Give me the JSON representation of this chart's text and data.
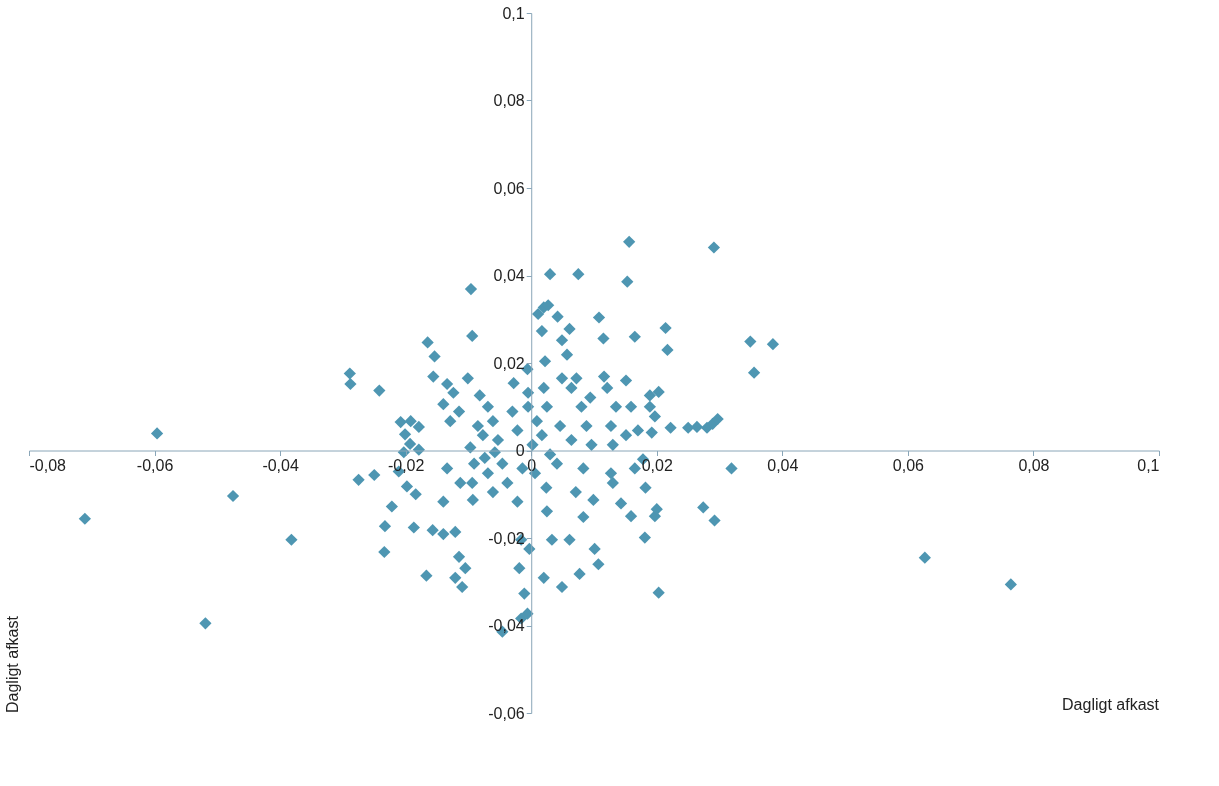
{
  "chart_data": {
    "type": "scatter",
    "xlabel": "Dagligt afkast",
    "ylabel": "Dagligt afkast",
    "xlim": [
      -0.08,
      0.1
    ],
    "ylim": [
      -0.06,
      0.1
    ],
    "xticks": [
      {
        "value": -0.08,
        "label": "-0,08"
      },
      {
        "value": -0.06,
        "label": "-0,06"
      },
      {
        "value": -0.04,
        "label": "-0,04"
      },
      {
        "value": -0.02,
        "label": "-0,02"
      },
      0,
      {
        "value": 0.02,
        "label": "0,02"
      },
      {
        "value": 0.04,
        "label": "0,04"
      },
      {
        "value": 0.06,
        "label": "0,06"
      },
      {
        "value": 0.08,
        "label": "0,08"
      },
      {
        "value": 0.1,
        "label": "0,1"
      }
    ],
    "yticks": [
      {
        "value": -0.06,
        "label": "-0,06"
      },
      {
        "value": -0.04,
        "label": "-0,04"
      },
      {
        "value": -0.02,
        "label": "-0,02"
      },
      0,
      {
        "value": 0.02,
        "label": "0,02"
      },
      {
        "value": 0.04,
        "label": "0,04"
      },
      {
        "value": 0.06,
        "label": "0,06"
      },
      {
        "value": 0.08,
        "label": "0,08"
      },
      {
        "value": 0.1,
        "label": "0,1"
      }
    ],
    "grid": false,
    "marker": "diamond",
    "series": [
      {
        "color": "#4e96b2",
        "x": [
          -0.0711,
          -0.0596,
          -0.0475,
          -0.0519,
          -0.0382,
          -0.0289,
          -0.0288,
          -0.0242,
          -0.0275,
          -0.025,
          -0.0233,
          -0.0222,
          -0.0234,
          -0.0203,
          -0.0208,
          -0.0192,
          -0.0179,
          -0.0201,
          -0.0193,
          -0.0179,
          -0.0211,
          -0.0198,
          -0.0184,
          -0.0187,
          -0.0165,
          -0.0154,
          -0.0156,
          -0.0167,
          -0.0157,
          -0.014,
          -0.014,
          -0.0134,
          -0.014,
          -0.0124,
          -0.0115,
          -0.0129,
          -0.0134,
          -0.0113,
          -0.0121,
          -0.0115,
          -0.0121,
          -0.011,
          -0.0105,
          -0.0094,
          -0.0096,
          -0.0101,
          -0.0097,
          -0.0091,
          -0.0094,
          -0.0093,
          -0.0085,
          -0.0077,
          -0.0074,
          -0.0069,
          -0.0061,
          -0.0082,
          -0.0069,
          -0.0061,
          -0.0053,
          -0.0058,
          -0.0046,
          -0.0038,
          -0.003,
          -0.0028,
          -0.0022,
          -0.0022,
          -0.0014,
          -0.0016,
          -0.0019,
          -0.0011,
          -0.0016,
          -0.0006,
          -0.0046,
          -0.0006,
          -0.0005,
          -0.0005,
          0.0002,
          0.0009,
          0.0006,
          -0.0003,
          0.0011,
          0.002,
          0.0027,
          0.0017,
          0.0022,
          0.002,
          0.0025,
          0.0017,
          0.003,
          0.0024,
          0.0025,
          0.002,
          0.003,
          0.0042,
          0.0049,
          0.0049,
          0.0046,
          0.0041,
          0.0033,
          0.0049,
          0.0057,
          0.0061,
          0.0064,
          0.0061,
          0.0064,
          0.0072,
          0.0075,
          0.008,
          0.0071,
          0.0077,
          0.0083,
          0.0088,
          0.0083,
          0.0094,
          0.0096,
          0.0099,
          0.0101,
          0.0107,
          0.0108,
          0.0115,
          0.0116,
          0.0121,
          0.0127,
          0.013,
          0.0127,
          0.013,
          0.0135,
          0.0143,
          0.0153,
          0.0156,
          0.0151,
          0.0151,
          0.0159,
          0.0159,
          0.0165,
          0.0165,
          0.017,
          0.0178,
          0.0181,
          0.0182,
          0.0189,
          0.0189,
          0.0192,
          0.0197,
          0.0197,
          0.0203,
          0.02,
          0.0203,
          0.0214,
          0.0217,
          0.0222,
          0.025,
          0.0264,
          0.028,
          0.0289,
          0.0297,
          0.0274,
          0.0292,
          0.0319,
          0.0291,
          0.0349,
          0.0385,
          0.0355,
          0.0627,
          0.0764
        ],
        "values": [
          -0.0156,
          0.0039,
          -0.0104,
          -0.0395,
          -0.0204,
          0.0176,
          0.0152,
          0.0137,
          -0.0067,
          -0.0056,
          -0.0173,
          -0.0128,
          -0.0232,
          -0.0004,
          0.0065,
          0.0067,
          0.0054,
          0.0037,
          0.0015,
          0.0002,
          -0.0048,
          -0.0082,
          -0.01,
          -0.0176,
          0.0247,
          0.0215,
          0.0169,
          -0.0286,
          -0.0182,
          -0.0191,
          -0.0117,
          0.0152,
          0.0106,
          0.0132,
          0.0089,
          0.0067,
          -0.0041,
          -0.0074,
          -0.0186,
          -0.0243,
          -0.0291,
          -0.0312,
          -0.0269,
          0.0262,
          0.0369,
          0.0165,
          0.0007,
          -0.003,
          -0.0074,
          -0.0113,
          0.0056,
          0.0035,
          -0.0017,
          -0.0052,
          -0.0095,
          0.0126,
          0.01,
          0.0067,
          0.0024,
          -0.0004,
          -0.003,
          -0.0074,
          0.0089,
          0.0154,
          0.0046,
          -0.0117,
          -0.0041,
          -0.0204,
          -0.0269,
          -0.0327,
          -0.0384,
          -0.0373,
          -0.0414,
          0.0186,
          0.0132,
          0.01,
          0.0013,
          0.0067,
          -0.0052,
          -0.0225,
          0.0312,
          0.0327,
          0.0332,
          0.0273,
          0.0204,
          0.0143,
          0.01,
          0.0035,
          -0.0009,
          -0.0085,
          -0.0139,
          -0.0291,
          0.0403,
          0.0306,
          0.0252,
          0.0165,
          0.0056,
          -0.003,
          -0.0204,
          -0.0312,
          0.0219,
          0.0278,
          0.0143,
          -0.0204,
          0.0024,
          0.0165,
          0.0403,
          0.01,
          -0.0095,
          -0.0282,
          -0.0152,
          0.0056,
          -0.0041,
          0.0121,
          0.0013,
          -0.0113,
          -0.0225,
          -0.026,
          0.0304,
          0.0256,
          0.0169,
          0.0143,
          0.0056,
          0.0013,
          -0.0052,
          -0.0074,
          0.01,
          -0.0121,
          0.0386,
          0.0477,
          0.016,
          0.0035,
          0.01,
          -0.015,
          0.026,
          -0.0041,
          0.0046,
          -0.002,
          -0.0199,
          -0.0085,
          0.0126,
          0.01,
          0.0041,
          0.0078,
          -0.015,
          0.0134,
          -0.0134,
          -0.0325,
          0.028,
          0.023,
          0.0052,
          0.0052,
          0.0054,
          0.0052,
          0.0061,
          0.0072,
          -0.013,
          -0.016,
          -0.0041,
          0.0464,
          0.0249,
          0.0243,
          0.0178,
          -0.0245,
          -0.0306
        ]
      }
    ]
  }
}
